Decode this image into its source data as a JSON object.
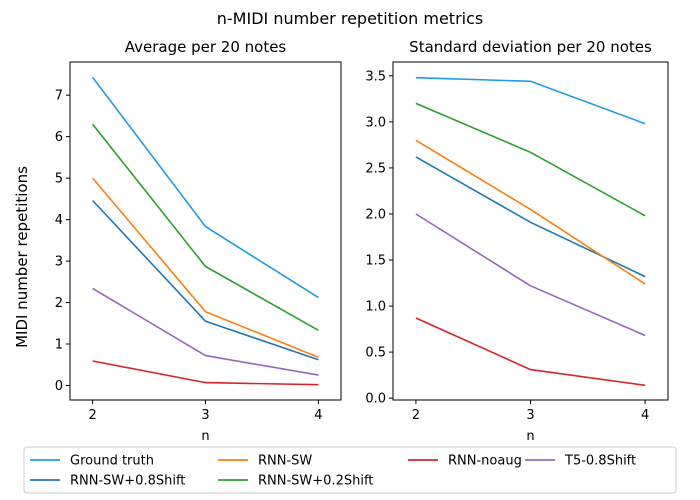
{
  "figure": {
    "suptitle": "n-MIDI number repetition metrics",
    "shared_ylabel": "MIDI number repetitions"
  },
  "chart_data": [
    {
      "type": "line",
      "title": "Average per 20 notes",
      "xlabel": "n",
      "ylabel": "MIDI number repetitions",
      "x": [
        2,
        3,
        4
      ],
      "xlim": [
        1.8,
        4.2
      ],
      "ylim": [
        -0.35,
        7.8
      ],
      "xticks": [
        "2",
        "3",
        "4"
      ],
      "yticks": [
        "0",
        "1",
        "2",
        "3",
        "4",
        "5",
        "6",
        "7"
      ],
      "grid": false,
      "series": [
        {
          "name": "Ground truth",
          "color": "#1f9be6",
          "values": [
            7.43,
            3.83,
            2.12
          ]
        },
        {
          "name": "RNN-SW+0.8Shift",
          "color": "#1f77b4",
          "values": [
            4.46,
            1.55,
            0.62
          ]
        },
        {
          "name": "RNN-SW",
          "color": "#ff7f0e",
          "values": [
            5.0,
            1.78,
            0.68
          ]
        },
        {
          "name": "RNN-SW+0.2Shift",
          "color": "#2ca02c",
          "values": [
            6.3,
            2.87,
            1.33
          ]
        },
        {
          "name": "RNN-noaug",
          "color": "#d62728",
          "values": [
            0.59,
            0.07,
            0.02
          ]
        },
        {
          "name": "T5-0.8Shift",
          "color": "#9467bd",
          "values": [
            2.34,
            0.72,
            0.25
          ]
        }
      ]
    },
    {
      "type": "line",
      "title": "Standard deviation per 20 notes",
      "xlabel": "n",
      "ylabel": "",
      "x": [
        2,
        3,
        4
      ],
      "xlim": [
        1.8,
        4.2
      ],
      "ylim": [
        -0.02,
        3.65
      ],
      "xticks": [
        "2",
        "3",
        "4"
      ],
      "yticks": [
        "0.0",
        "0.5",
        "1.0",
        "1.5",
        "2.0",
        "2.5",
        "3.0",
        "3.5"
      ],
      "grid": false,
      "series": [
        {
          "name": "Ground truth",
          "color": "#1f9be6",
          "values": [
            3.48,
            3.44,
            2.98
          ]
        },
        {
          "name": "RNN-SW+0.8Shift",
          "color": "#1f77b4",
          "values": [
            2.62,
            1.91,
            1.32
          ]
        },
        {
          "name": "RNN-SW",
          "color": "#ff7f0e",
          "values": [
            2.8,
            2.05,
            1.24
          ]
        },
        {
          "name": "RNN-SW+0.2Shift",
          "color": "#2ca02c",
          "values": [
            3.2,
            2.67,
            1.98
          ]
        },
        {
          "name": "RNN-noaug",
          "color": "#d62728",
          "values": [
            0.87,
            0.31,
            0.14
          ]
        },
        {
          "name": "T5-0.8Shift",
          "color": "#9467bd",
          "values": [
            2.0,
            1.22,
            0.68
          ]
        }
      ]
    }
  ],
  "legend": {
    "placement": "bottom",
    "columns": 4,
    "entries": [
      {
        "label": "Ground truth",
        "color": "#1f9be6"
      },
      {
        "label": "RNN-SW",
        "color": "#ff7f0e"
      },
      {
        "label": "RNN-noaug",
        "color": "#d62728"
      },
      {
        "label": "T5-0.8Shift",
        "color": "#9467bd"
      },
      {
        "label": "RNN-SW+0.8Shift",
        "color": "#1f77b4"
      },
      {
        "label": "RNN-SW+0.2Shift",
        "color": "#2ca02c"
      }
    ]
  }
}
